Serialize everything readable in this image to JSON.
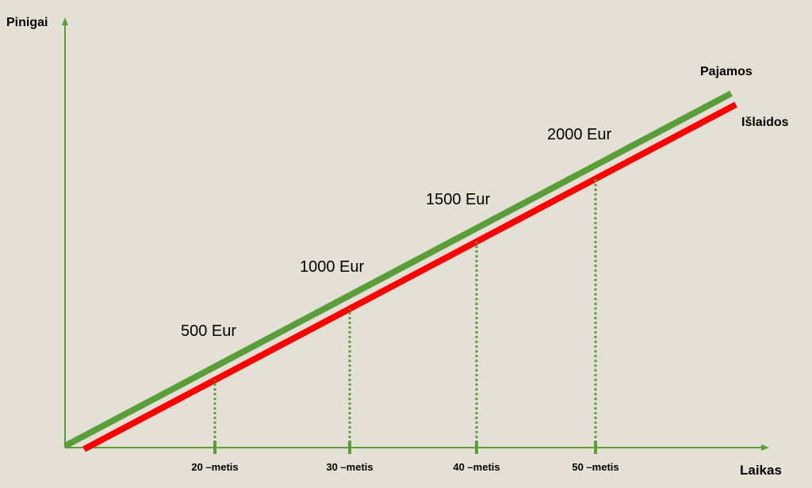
{
  "axes": {
    "y_label": "Pinigai",
    "x_label": "Laikas"
  },
  "lines": [
    {
      "name": "Pajamos"
    },
    {
      "name": "Išlaidos"
    }
  ],
  "markers": [
    {
      "time_label": "20 –metis",
      "amount_label": "500 Eur"
    },
    {
      "time_label": "30 –metis",
      "amount_label": "1000 Eur"
    },
    {
      "time_label": "40 –metis",
      "amount_label": "1500 Eur"
    },
    {
      "time_label": "50 –metis",
      "amount_label": "2000 Eur"
    }
  ]
}
